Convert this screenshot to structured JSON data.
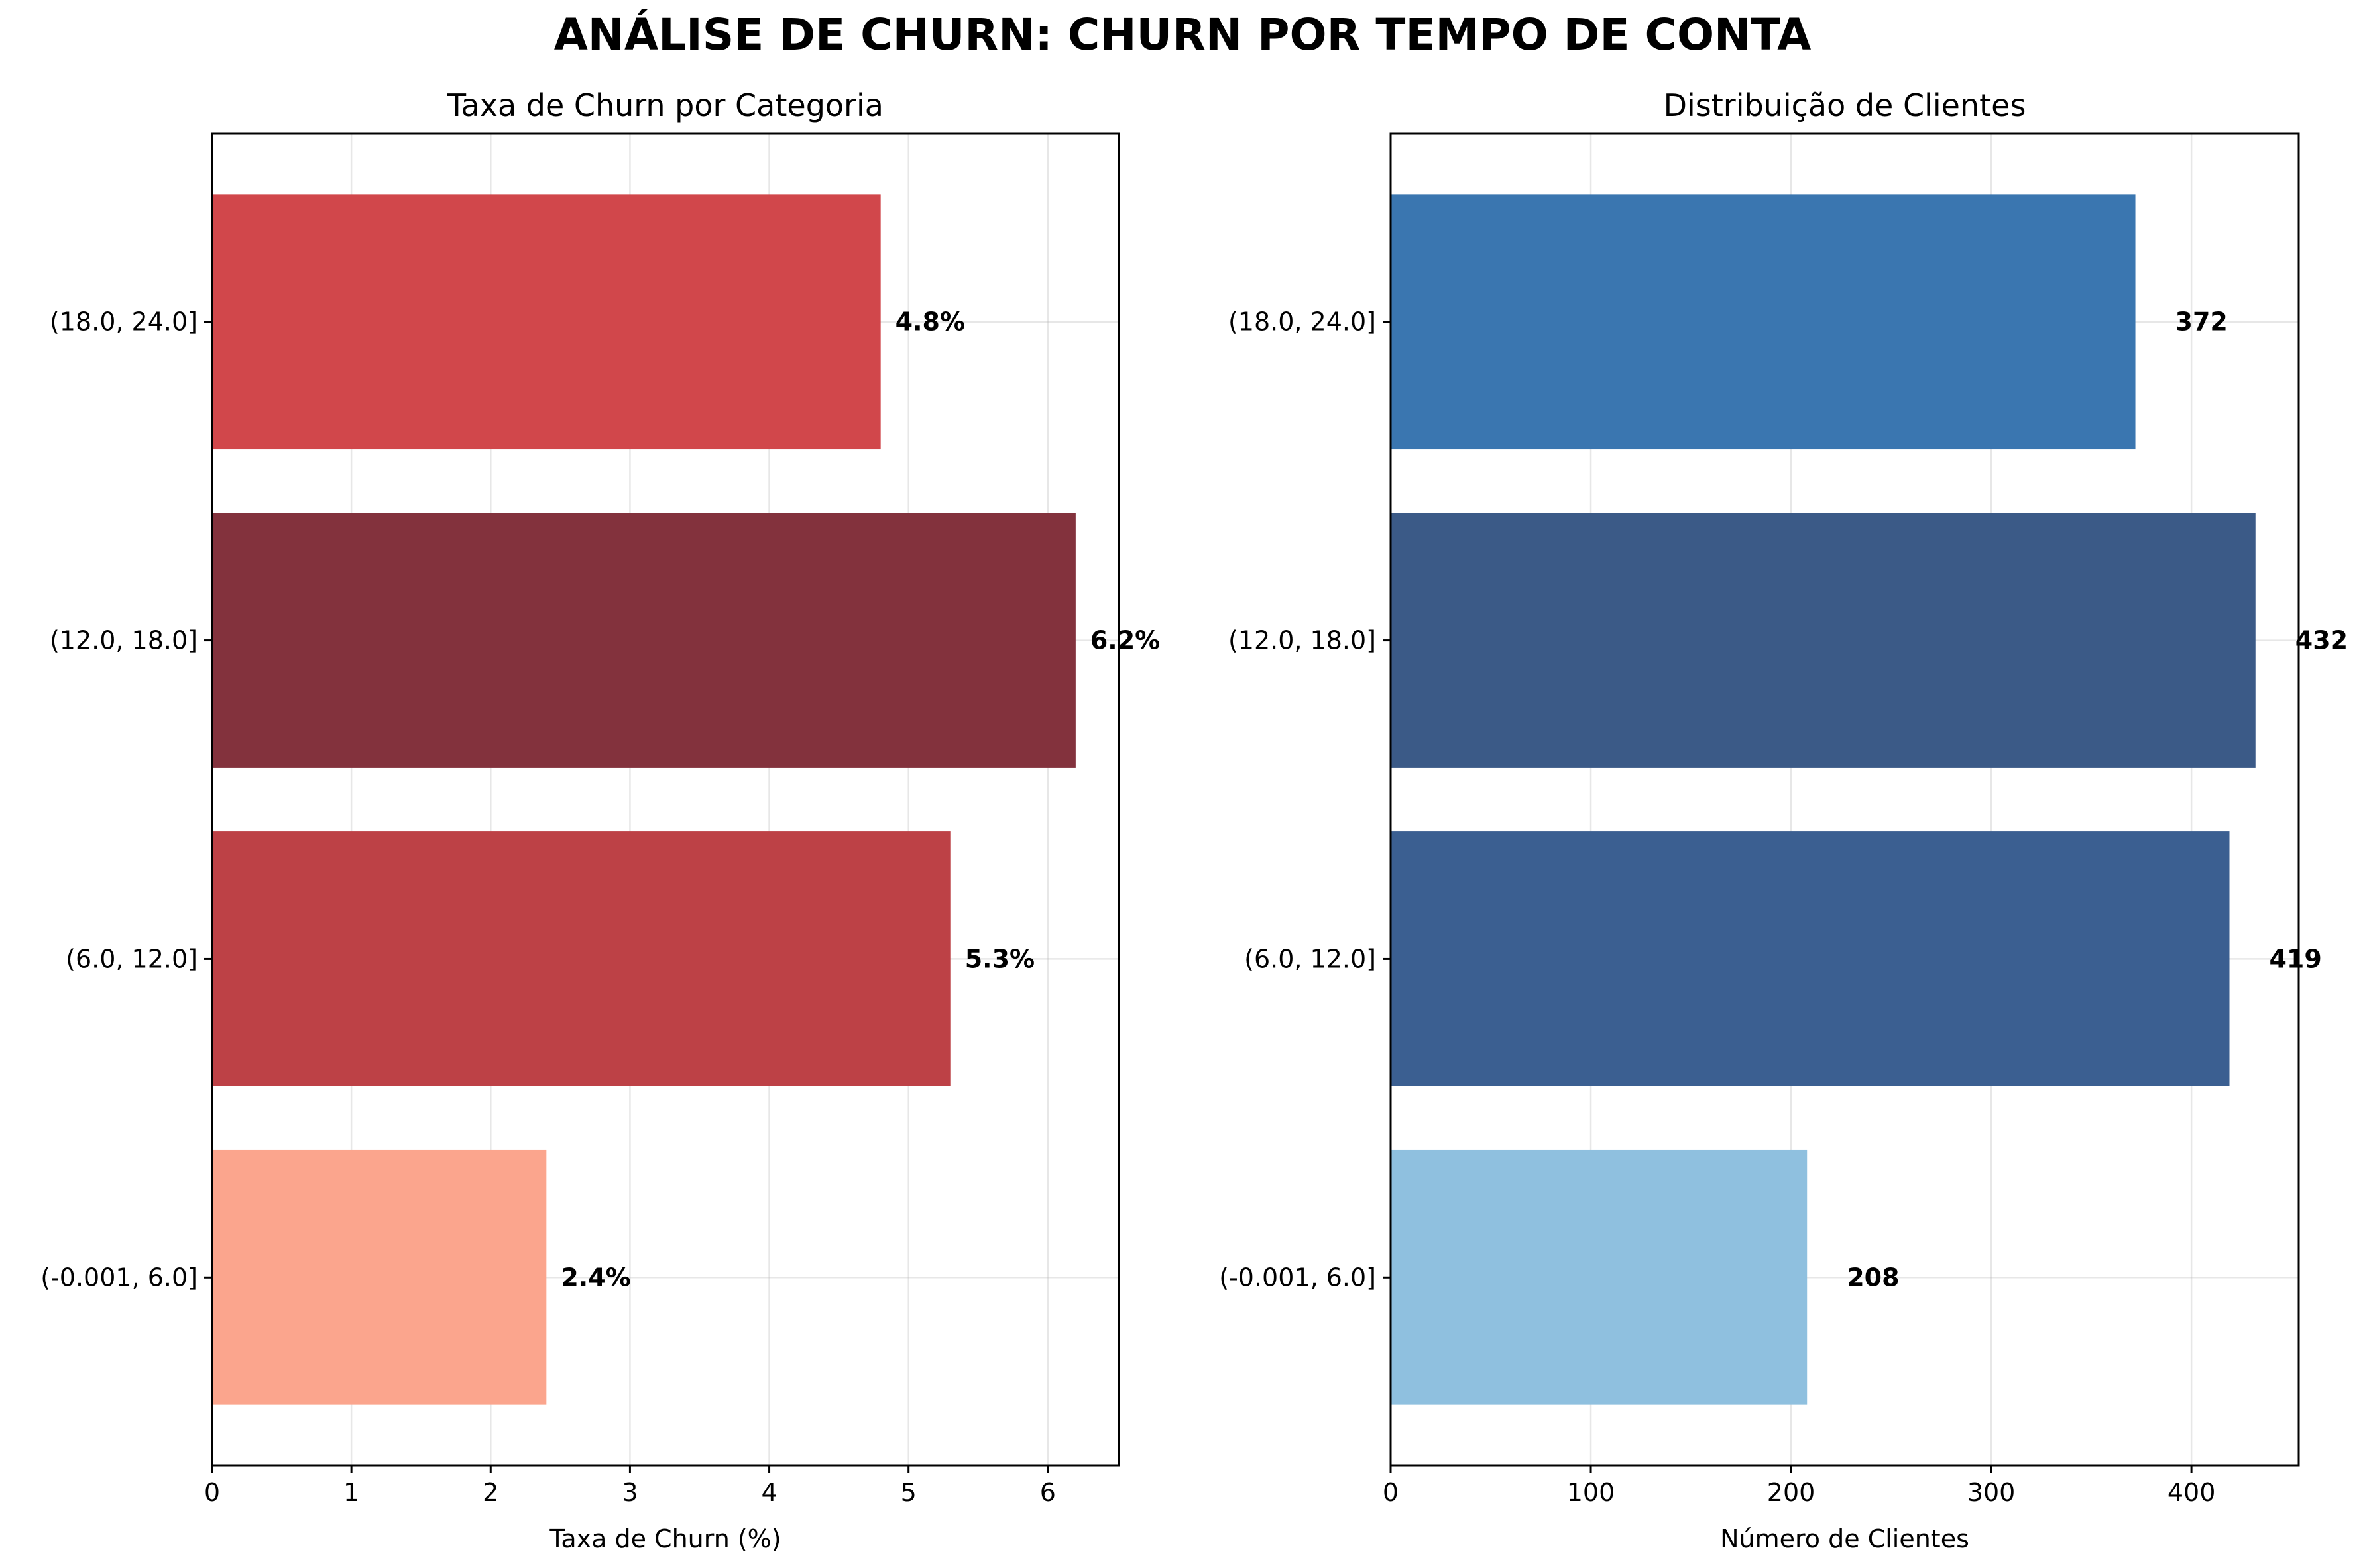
{
  "title": "ANÁLISE DE CHURN: CHURN POR TEMPO DE CONTA",
  "chart_data": [
    {
      "type": "bar",
      "orientation": "horizontal",
      "title": "Taxa de Churn por Categoria",
      "xlabel": "Taxa de Churn (%)",
      "ylabel": "",
      "categories": [
        "(-0.001, 6.0]",
        "(6.0, 12.0]",
        "(12.0, 18.0]",
        "(18.0, 24.0]"
      ],
      "values": [
        2.4,
        5.3,
        6.2,
        4.8
      ],
      "value_labels": [
        "2.4%",
        "5.3%",
        "6.2%",
        "4.8%"
      ],
      "colors": [
        "#fba58d",
        "#bd4146",
        "#83323d",
        "#d1474b"
      ],
      "xlim": [
        0,
        6.51
      ],
      "xticks": [
        0,
        1,
        2,
        3,
        4,
        5,
        6
      ],
      "grid": true
    },
    {
      "type": "bar",
      "orientation": "horizontal",
      "title": "Distribuição de Clientes",
      "xlabel": "Número de Clientes",
      "ylabel": "",
      "categories": [
        "(-0.001, 6.0]",
        "(6.0, 12.0]",
        "(12.0, 18.0]",
        "(18.0, 24.0]"
      ],
      "values": [
        208,
        419,
        432,
        372
      ],
      "value_labels": [
        "208",
        "419",
        "432",
        "372"
      ],
      "colors": [
        "#8fc0df",
        "#3b5f91",
        "#3b5a87",
        "#3a76b0"
      ],
      "xlim": [
        0,
        453.6
      ],
      "xticks": [
        0,
        100,
        200,
        300,
        400
      ],
      "grid": true
    }
  ]
}
